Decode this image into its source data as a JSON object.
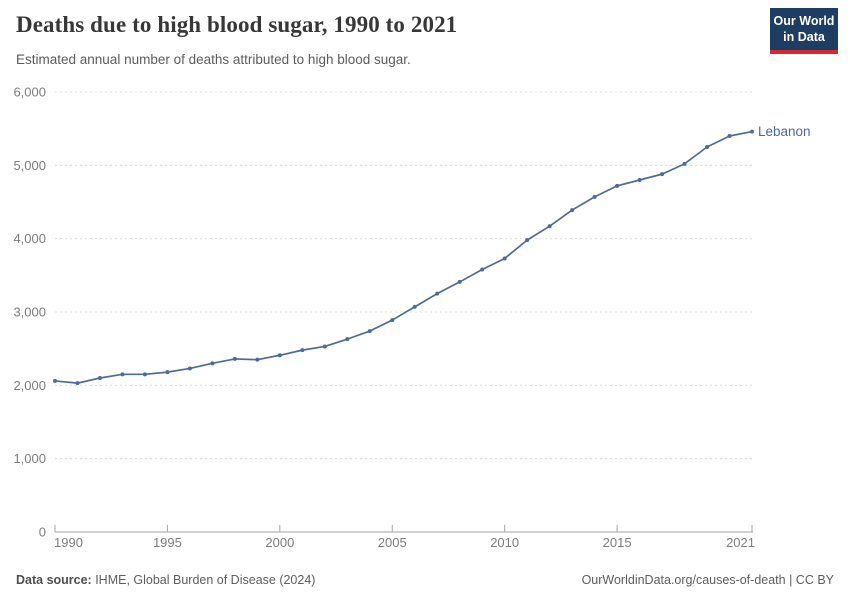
{
  "header": {
    "title": "Deaths due to high blood sugar, 1990 to 2021",
    "subtitle": "Estimated annual number of deaths attributed to high blood sugar.",
    "logo_line1": "Our World",
    "logo_line2": "in Data"
  },
  "chart_data": {
    "type": "line",
    "title": "Deaths due to high blood sugar, 1990 to 2021",
    "xlabel": "",
    "ylabel": "",
    "xlim": [
      1990,
      2021
    ],
    "ylim": [
      0,
      6000
    ],
    "grid": "horizontal-dashed",
    "legend_position": "end-of-line-label",
    "x_ticks": [
      {
        "value": 1990,
        "label": "1990"
      },
      {
        "value": 1995,
        "label": "1995"
      },
      {
        "value": 2000,
        "label": "2000"
      },
      {
        "value": 2005,
        "label": "2005"
      },
      {
        "value": 2010,
        "label": "2010"
      },
      {
        "value": 2015,
        "label": "2015"
      },
      {
        "value": 2021,
        "label": "2021"
      }
    ],
    "y_ticks": [
      {
        "value": 0,
        "label": "0"
      },
      {
        "value": 1000,
        "label": "1,000"
      },
      {
        "value": 2000,
        "label": "2,000"
      },
      {
        "value": 3000,
        "label": "3,000"
      },
      {
        "value": 4000,
        "label": "4,000"
      },
      {
        "value": 5000,
        "label": "5,000"
      },
      {
        "value": 6000,
        "label": "6,000"
      }
    ],
    "series": [
      {
        "name": "Lebanon",
        "color": "#4c6a9c",
        "x": [
          1990,
          1991,
          1992,
          1993,
          1994,
          1995,
          1996,
          1997,
          1998,
          1999,
          2000,
          2001,
          2002,
          2003,
          2004,
          2005,
          2006,
          2007,
          2008,
          2009,
          2010,
          2011,
          2012,
          2013,
          2014,
          2015,
          2016,
          2017,
          2018,
          2019,
          2020,
          2021
        ],
        "values": [
          2060,
          2030,
          2100,
          2150,
          2150,
          2180,
          2230,
          2300,
          2360,
          2350,
          2410,
          2480,
          2530,
          2630,
          2740,
          2890,
          3070,
          3250,
          3410,
          3580,
          3730,
          3980,
          4170,
          4390,
          4570,
          4720,
          4800,
          4880,
          5020,
          5250,
          5400,
          5460
        ]
      }
    ]
  },
  "footer": {
    "source_label": "Data source:",
    "source_text": " IHME, Global Burden of Disease (2024)",
    "link_text": "OurWorldinData.org/causes-of-death | CC BY"
  },
  "colors": {
    "line": "#4c6a9c",
    "grid": "#dcdcdc",
    "axis": "#a3a3a3",
    "tick_label": "#7c7c7c",
    "logo_bg": "#1d3d63",
    "logo_accent": "#d7282f"
  }
}
